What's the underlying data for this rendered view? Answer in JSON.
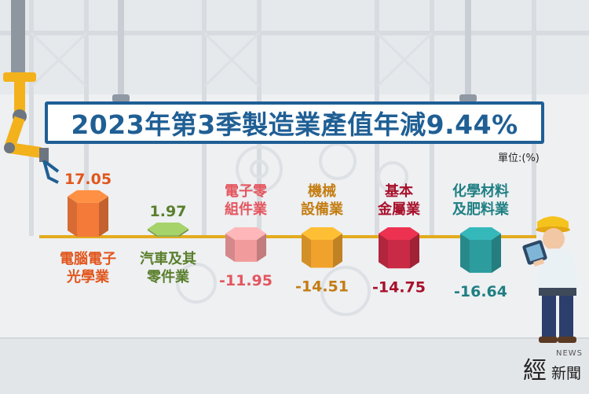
{
  "title": "2023年第3季製造業產值年減9.44%",
  "unit_label": "單位:(%)",
  "brand": {
    "mark": "經",
    "small": "新聞",
    "news": "NEWS"
  },
  "chart_data": {
    "type": "bar",
    "title": "2023年第3季製造業產值年減9.44%",
    "unit": "單位:(%)",
    "categories": [
      "電腦電子\n光學業",
      "汽車及其\n零件業",
      "電子零\n組件業",
      "機械\n設備業",
      "基本\n金屬業",
      "化學材料\n及肥料業"
    ],
    "values": [
      17.05,
      1.97,
      -11.95,
      -14.51,
      -14.75,
      -16.64
    ],
    "value_labels": [
      "17.05",
      "1.97",
      "-11.95",
      "-14.51",
      "-14.75",
      "-16.64"
    ],
    "colors": [
      "#f47a3a",
      "#8db35a",
      "#f29b9d",
      "#f0a22d",
      "#c92a45",
      "#2d9c9e"
    ],
    "label_colors": [
      "#e2561d",
      "#5a7f2c",
      "#e4565f",
      "#c47d12",
      "#a8102b",
      "#1f7f83"
    ]
  }
}
